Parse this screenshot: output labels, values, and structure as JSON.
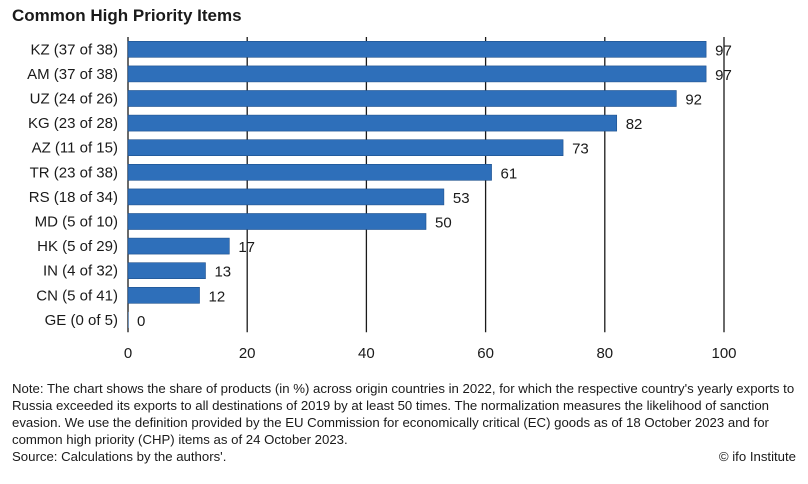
{
  "chart_data": {
    "type": "bar",
    "orientation": "horizontal",
    "title": "Common High Priority Items",
    "categories": [
      "KZ (37 of 38)",
      "AM (37 of 38)",
      "UZ (24 of 26)",
      "KG (23 of 28)",
      "AZ (11 of 15)",
      "TR (23 of 38)",
      "RS (18 of 34)",
      "MD (5 of 10)",
      "HK (5 of 29)",
      "IN (4 of 32)",
      "CN (5 of 41)",
      "GE (0 of 5)"
    ],
    "values": [
      97,
      97,
      92,
      82,
      73,
      61,
      53,
      50,
      17,
      13,
      12,
      0
    ],
    "xlim": [
      0,
      100
    ],
    "xticks": [
      0,
      20,
      40,
      60,
      80,
      100
    ],
    "xlabel": "",
    "ylabel": "",
    "grid": "vertical",
    "bar_color": "#2e6fba"
  },
  "footer": {
    "note": "Note: The chart shows the share of products (in %) across origin countries in 2022, for which the respective country's yearly exports to Russia exceeded its exports to all destinations of 2019 by at least 50 times. The normalization measures the likelihood of sanction evasion. We use the definition provided by the EU Commission for economically critical (EC) goods as of 18 October 2023 and for common high priority (CHP) items as of 24 October 2023.",
    "source": "Source: Calculations by the authors'.",
    "credit": "© ifo Institute"
  }
}
